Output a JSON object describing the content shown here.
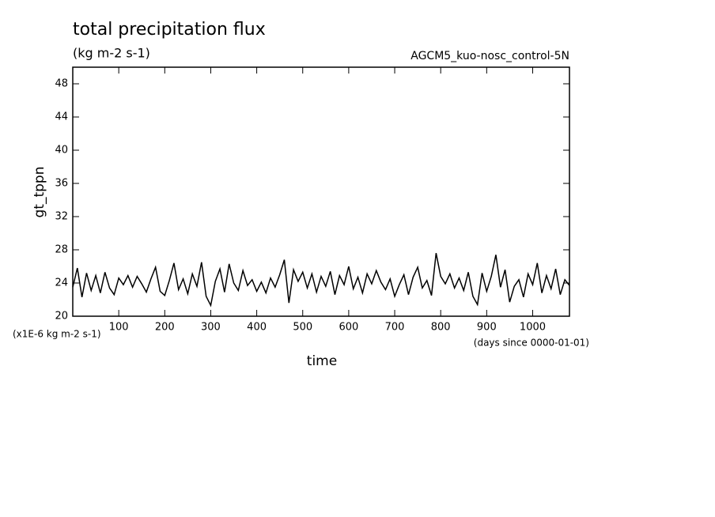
{
  "chart_data": {
    "type": "line",
    "title": "total precipitation flux",
    "subtitle": "(kg m-2 s-1)",
    "annotation": "AGCM5_kuo-nosc_control-5N",
    "ylabel": "gt_tppn",
    "yunits": "(x1E-6 kg m-2 s-1)",
    "xlabel": "time",
    "xunits": "(days since 0000-01-01)",
    "xlim": [
      0,
      1080
    ],
    "ylim": [
      20,
      50
    ],
    "xticks": [
      100,
      200,
      300,
      400,
      500,
      600,
      700,
      800,
      900,
      1000
    ],
    "yticks": [
      20,
      24,
      28,
      32,
      36,
      40,
      44,
      48
    ],
    "x": [
      0,
      10,
      20,
      30,
      40,
      50,
      60,
      70,
      80,
      90,
      100,
      110,
      120,
      130,
      140,
      150,
      160,
      170,
      180,
      190,
      200,
      210,
      220,
      230,
      240,
      250,
      260,
      270,
      280,
      290,
      300,
      310,
      320,
      330,
      340,
      350,
      360,
      370,
      380,
      390,
      400,
      410,
      420,
      430,
      440,
      450,
      460,
      470,
      480,
      490,
      500,
      510,
      520,
      530,
      540,
      550,
      560,
      570,
      580,
      590,
      600,
      610,
      620,
      630,
      640,
      650,
      660,
      670,
      680,
      690,
      700,
      710,
      720,
      730,
      740,
      750,
      760,
      770,
      780,
      790,
      800,
      810,
      820,
      830,
      840,
      850,
      860,
      870,
      880,
      890,
      900,
      910,
      920,
      930,
      940,
      950,
      960,
      970,
      980,
      990,
      1000,
      1010,
      1020,
      1030,
      1040,
      1050,
      1060,
      1070,
      1080
    ],
    "series": [
      {
        "name": "gt_tppn",
        "color": "#000000",
        "values": [
          23.5,
          25.8,
          22.3,
          25.2,
          23.1,
          24.9,
          22.8,
          25.3,
          23.4,
          22.6,
          24.6,
          23.8,
          24.9,
          23.5,
          24.8,
          23.9,
          22.9,
          24.5,
          25.9,
          23.0,
          22.5,
          24.3,
          26.4,
          23.2,
          24.5,
          22.7,
          25.1,
          23.6,
          26.5,
          22.4,
          21.3,
          24.2,
          25.7,
          22.9,
          26.3,
          24.0,
          23.1,
          25.5,
          23.7,
          24.4,
          23.0,
          24.1,
          22.8,
          24.6,
          23.5,
          25.0,
          26.8,
          21.6,
          25.6,
          24.2,
          25.3,
          23.4,
          25.1,
          22.9,
          24.8,
          23.6,
          25.4,
          22.6,
          24.9,
          23.8,
          26.0,
          23.3,
          24.7,
          22.8,
          25.1,
          23.9,
          25.5,
          24.1,
          23.2,
          24.5,
          22.4,
          23.8,
          25.0,
          22.6,
          24.7,
          25.9,
          23.4,
          24.3,
          22.5,
          27.6,
          24.8,
          23.9,
          25.1,
          23.4,
          24.6,
          23.1,
          25.3,
          22.4,
          21.4,
          25.2,
          23.0,
          24.8,
          27.4,
          23.5,
          25.6,
          21.7,
          23.6,
          24.4,
          22.3,
          25.1,
          23.8,
          26.4,
          22.8,
          24.9,
          23.3,
          25.7,
          22.6,
          24.4,
          23.7
        ]
      }
    ]
  }
}
